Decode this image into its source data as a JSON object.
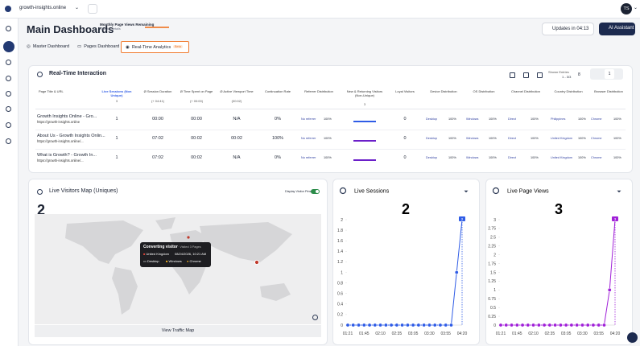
{
  "topbar": {
    "site": "growth-insights.online",
    "avatar": "TS"
  },
  "header": {
    "title": "Main Dashboards",
    "quota_title": "Monthly Page Views Remaining",
    "quota_link": "Click for details",
    "updates": "Updates in 04:13",
    "ai": "AI Assistant"
  },
  "tabs": [
    {
      "label": "Master Dashboard"
    },
    {
      "label": "Pages Dashboard"
    },
    {
      "label": "Real-Time Analytics",
      "badge": "Beta"
    }
  ],
  "interaction": {
    "title": "Real-Time Interaction",
    "shown_label": "Shown Entries",
    "shown": "1 - 3/3",
    "page_size": "8",
    "page": "1",
    "columns": [
      {
        "label": "Page Title & URL"
      },
      {
        "label": "Live Sessions (Non Unique)",
        "sub": "3"
      },
      {
        "label": "Ø Session Duration",
        "sub": "(+ 04:41)"
      },
      {
        "label": "Ø Time Spent on Page",
        "sub": "(+ 00:00)"
      },
      {
        "label": "Ø Active Viewport Time",
        "sub": "(00:02)"
      },
      {
        "label": "Continuation Rate"
      },
      {
        "label": "Referrer Distribution"
      },
      {
        "label": "New & Returning Visitors (Non-Unique)",
        "sub": "3"
      },
      {
        "label": "Loyal Visitors"
      },
      {
        "label": "Device Distribution"
      },
      {
        "label": "OS Distribution"
      },
      {
        "label": "Channel Distribution"
      },
      {
        "label": "Country Distribution"
      },
      {
        "label": "Browser Distribution"
      }
    ],
    "rows": [
      {
        "title": "Growth Insights Online - Gro...",
        "url": "https://growth-insights.online",
        "sessions": 1,
        "duration": "00:00",
        "time_on_page": "00:00",
        "viewport": "N/A",
        "continuation": "0%",
        "referrer": "No referrer",
        "referrer_pct": "100%",
        "visitor_bar": 100,
        "visitor_color": "#2f5ce6",
        "loyal": 0,
        "device": "Desktop",
        "device_pct": "100%",
        "os": "Windows",
        "os_pct": "100%",
        "channel": "Direct",
        "channel_pct": "100%",
        "country": "Philippines",
        "country_pct": "100%",
        "browser": "Chrome",
        "browser_pct": "100%"
      },
      {
        "title": "About Us - Growth Insights Onlin...",
        "url": "https://growth-insights.online/...",
        "sessions": 1,
        "duration": "07:02",
        "time_on_page": "00:02",
        "viewport": "00:02",
        "continuation": "100%",
        "referrer": "No referrer",
        "referrer_pct": "100%",
        "visitor_bar": 100,
        "visitor_color": "#6b1fc9",
        "loyal": 0,
        "device": "Desktop",
        "device_pct": "100%",
        "os": "Windows",
        "os_pct": "100%",
        "channel": "Direct",
        "channel_pct": "100%",
        "country": "United Kingdom",
        "country_pct": "100%",
        "browser": "Chrome",
        "browser_pct": "100%"
      },
      {
        "title": "What is Growth? - Growth In...",
        "url": "https://growth-insights.online/...",
        "sessions": 1,
        "duration": "07:02",
        "time_on_page": "00:02",
        "viewport": "N/A",
        "continuation": "0%",
        "referrer": "No referrer",
        "referrer_pct": "100%",
        "visitor_bar": 100,
        "visitor_color": "#6b1fc9",
        "loyal": 0,
        "device": "Desktop",
        "device_pct": "100%",
        "os": "Windows",
        "os_pct": "100%",
        "channel": "Direct",
        "channel_pct": "100%",
        "country": "United Kingdom",
        "country_pct": "100%",
        "browser": "Chrome",
        "browser_pct": "100%"
      }
    ]
  },
  "map": {
    "title": "Live Visitors Map (Uniques)",
    "count": 2,
    "pins_label": "Display Visitor Pins",
    "tooltip": {
      "title": "Converting visitor",
      "pages": "· Visited 3 Pages",
      "country": "United Kingdom",
      "time": "08/24/2026, 10:21 AM",
      "device": "Desktop",
      "os": "Windows",
      "browser": "Chrome"
    },
    "button": "View Traffic Map"
  },
  "chart_data": [
    {
      "type": "line",
      "title": "Live Sessions",
      "total": 2,
      "categories": [
        "01:21",
        null,
        null,
        "01:45",
        null,
        null,
        "02:10",
        null,
        null,
        "02:35",
        null,
        null,
        "03:05",
        null,
        null,
        "03:30",
        null,
        null,
        "03:55",
        null,
        null,
        "04:20"
      ],
      "series": [
        {
          "color": "#2f5ce6",
          "values": [
            0,
            0,
            0,
            0,
            0,
            0,
            0,
            0,
            0,
            0,
            0,
            0,
            0,
            0,
            0,
            0,
            0,
            0,
            0,
            0,
            1,
            2
          ]
        }
      ],
      "ylim": [
        0,
        2
      ],
      "yticks": [
        0,
        0.2,
        0.4,
        0.6,
        0.8,
        1,
        1.2,
        1.4,
        1.6,
        1.8,
        2
      ]
    },
    {
      "type": "line",
      "title": "Live Page Views",
      "total": 3,
      "categories": [
        "01:21",
        null,
        null,
        "01:45",
        null,
        null,
        "02:10",
        null,
        null,
        "02:35",
        null,
        null,
        "03:05",
        null,
        null,
        "03:30",
        null,
        null,
        "03:55",
        null,
        null,
        "04:20"
      ],
      "series": [
        {
          "color": "#a020d8",
          "values": [
            0,
            0,
            0,
            0,
            0,
            0,
            0,
            0,
            0,
            0,
            0,
            0,
            0,
            0,
            0,
            0,
            0,
            0,
            0,
            0,
            1,
            3
          ]
        }
      ],
      "ylim": [
        0,
        3
      ],
      "yticks": [
        0,
        0.25,
        0.5,
        0.75,
        1,
        1.25,
        1.5,
        1.75,
        2,
        2.25,
        2.5,
        2.75,
        3
      ]
    }
  ]
}
